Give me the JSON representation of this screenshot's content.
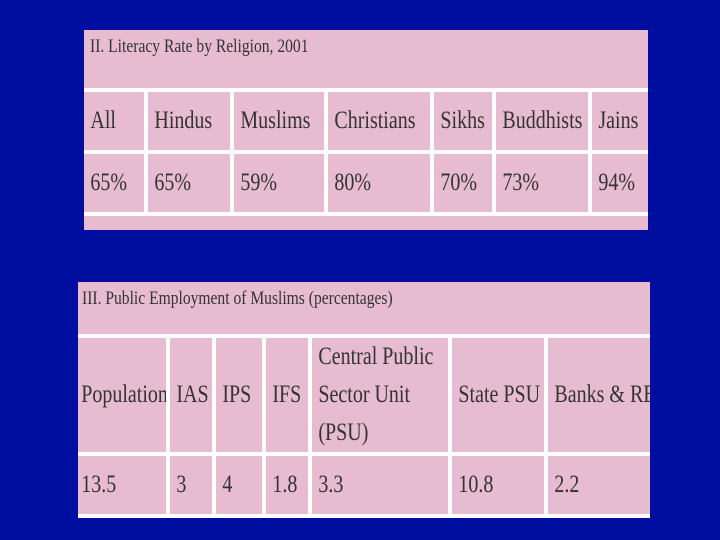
{
  "literacy": {
    "title": "II. Literacy Rate by Religion, 2001",
    "headers": [
      "All",
      "Hindus",
      "Muslims",
      "Christians",
      "Sikhs",
      "Buddhists",
      "Jains"
    ],
    "values": [
      "65%",
      "65%",
      "59%",
      "80%",
      "70%",
      "73%",
      "94%"
    ]
  },
  "employment": {
    "title": "III. Public Employment of Muslims (percentages)",
    "headers": [
      "Population",
      "IAS",
      "IPS",
      "IFS",
      "Central Public Sector Unit (PSU)",
      "State PSU",
      "Banks & RBI"
    ],
    "values": [
      "13.5",
      "3",
      "4",
      "1.8",
      "3.3",
      "10.8",
      "2.2"
    ]
  }
}
